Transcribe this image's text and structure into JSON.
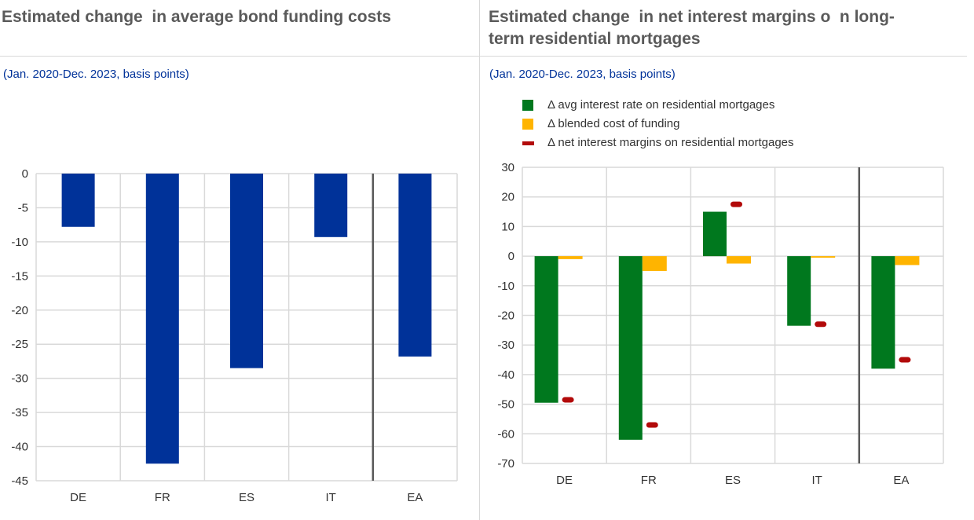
{
  "chart_data": [
    {
      "type": "bar",
      "title": "Estimated change  in average bond funding costs",
      "subtitle": "(Jan. 2020-Dec. 2023, basis points)",
      "xlabel": "",
      "ylabel": "",
      "categories": [
        "DE",
        "FR",
        "ES",
        "IT",
        "EA"
      ],
      "values": [
        -7.8,
        -42.5,
        -28.5,
        -9.3,
        -26.8
      ],
      "ylim": [
        -45,
        0
      ],
      "yticks": [
        0,
        -5,
        -10,
        -15,
        -20,
        -25,
        -30,
        -35,
        -40,
        -45
      ],
      "grid": true,
      "colors": {
        "bar": "#003299"
      }
    },
    {
      "type": "bar",
      "title": "Estimated change  in net interest margins o  n long-\nterm residential mortgages",
      "subtitle": "(Jan. 2020-Dec. 2023, basis points)",
      "xlabel": "",
      "ylabel": "",
      "categories": [
        "DE",
        "FR",
        "ES",
        "IT",
        "EA"
      ],
      "series": [
        {
          "name": "Δ avg interest rate on residential mortgages",
          "kind": "bar",
          "color": "#00781e",
          "values": [
            -49.5,
            -62,
            15,
            -23.5,
            -38
          ]
        },
        {
          "name": "Δ blended cost of funding",
          "kind": "bar",
          "color": "#ffb400",
          "values": [
            -1,
            -5,
            -2.5,
            -0.5,
            -3
          ]
        },
        {
          "name": "Δ  net interest margins on residential mortgages",
          "kind": "marker",
          "color": "#b20a0a",
          "values": [
            -48.5,
            -57,
            17.5,
            -23,
            -35
          ]
        }
      ],
      "ylim": [
        -70,
        30
      ],
      "yticks": [
        30,
        20,
        10,
        0,
        -10,
        -20,
        -30,
        -40,
        -50,
        -60,
        -70
      ],
      "grid": true,
      "legend": "top-left"
    }
  ]
}
